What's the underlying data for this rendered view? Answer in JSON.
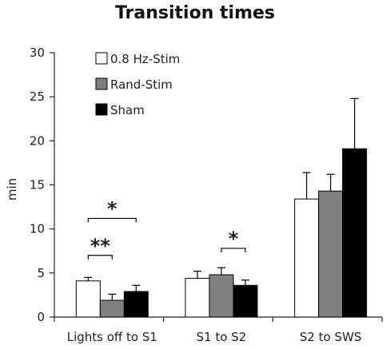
{
  "chart_data": {
    "type": "bar",
    "title": "Transition times",
    "ylabel": "min",
    "xlabel": "",
    "ylim": [
      0,
      30
    ],
    "yticks": [
      0,
      5,
      10,
      15,
      20,
      25,
      30
    ],
    "categories": [
      "Lights off to S1",
      "S1 to S2",
      "S2 to SWS"
    ],
    "series": [
      {
        "name": "0.8 Hz-Stim",
        "color": "#ffffff",
        "values": [
          4.1,
          4.4,
          13.4
        ],
        "errors": [
          0.4,
          0.8,
          3.0
        ]
      },
      {
        "name": "Rand-Stim",
        "color": "#808080",
        "values": [
          1.9,
          4.8,
          14.3
        ],
        "errors": [
          0.7,
          0.8,
          1.9
        ]
      },
      {
        "name": "Sham",
        "color": "#000000",
        "values": [
          2.9,
          3.6,
          19.1
        ],
        "errors": [
          0.7,
          0.6,
          5.7
        ]
      }
    ],
    "legend_position": "top-left",
    "significance": [
      {
        "label": "*",
        "category": 0,
        "from_series": 0,
        "to_series": 2,
        "level": 11.2
      },
      {
        "label": "**",
        "category": 0,
        "from_series": 0,
        "to_series": 1,
        "level": 7.0
      },
      {
        "label": "*",
        "category": 1,
        "from_series": 1,
        "to_series": 2,
        "level": 7.8
      }
    ]
  }
}
